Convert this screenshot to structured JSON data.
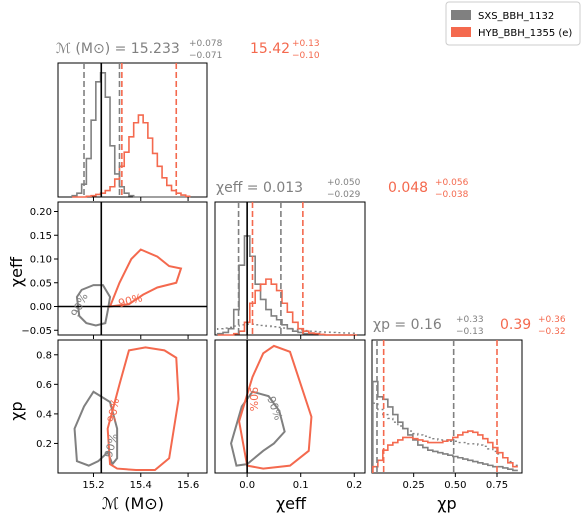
{
  "colors": {
    "series1": "#808080",
    "series2": "#f4694e",
    "truth": "#000000"
  },
  "legend": {
    "placement": "top-right",
    "items": [
      {
        "label": "SXS_BBH_1132",
        "color": "#808080"
      },
      {
        "label": "HYB_BBH_1355 (e)",
        "color": "#f4694e"
      }
    ]
  },
  "titles": {
    "mass": {
      "lead": "ℳ (M⊙) = 15.233",
      "up1": "+0.078",
      "lo1": "−0.071",
      "val2": "15.42",
      "up2": "+0.13",
      "lo2": "−0.10"
    },
    "chieff": {
      "lead": "χeff = 0.013",
      "up1": "+0.050",
      "lo1": "−0.029",
      "val2": "0.048",
      "up2": "+0.056",
      "lo2": "−0.038"
    },
    "chip": {
      "lead": "χp = 0.16",
      "up1": "+0.33",
      "lo1": "−0.13",
      "val2": "0.39",
      "up2": "+0.36",
      "lo2": "−0.32"
    }
  },
  "axis_labels": {
    "mass": "ℳ (M⊙)",
    "chieff": "χeff",
    "chip": "χp"
  },
  "contour_labels": {
    "level": "90%"
  },
  "chart_data": {
    "type": "corner",
    "parameters": [
      "mass",
      "chi_eff",
      "chi_p"
    ],
    "ranges": {
      "mass": [
        15.05,
        15.68
      ],
      "chi_eff": [
        -0.06,
        0.22
      ],
      "chi_p": [
        0.0,
        0.9
      ]
    },
    "ticks": {
      "mass": [
        "15.2",
        "15.4",
        "15.6"
      ],
      "chi_eff_x": [
        "0.0",
        "0.1",
        "0.2"
      ],
      "chi_eff_y": [
        "−0.05",
        "0.00",
        "0.05",
        "0.10",
        "0.15",
        "0.20"
      ],
      "chi_p_x": [
        "0.25",
        "0.50",
        "0.75"
      ],
      "chi_p_y": [
        "0.2",
        "0.4",
        "0.6",
        "0.8"
      ]
    },
    "truth": {
      "mass": 15.233,
      "chi_eff": 0.0
    },
    "credible_intervals": {
      "mass": {
        "s1": [
          15.16,
          15.31
        ],
        "s2": [
          15.32,
          15.55
        ]
      },
      "chi_eff": {
        "s1": [
          -0.016,
          0.063
        ],
        "s2": [
          0.01,
          0.104
        ]
      },
      "chi_p": {
        "s1": [
          0.03,
          0.49
        ],
        "s2": [
          0.07,
          0.75
        ]
      }
    },
    "hist_mass": {
      "x": [
        15.12,
        15.14,
        15.16,
        15.18,
        15.2,
        15.22,
        15.24,
        15.26,
        15.28,
        15.3,
        15.32,
        15.34,
        15.36,
        15.38,
        15.4,
        15.42,
        15.44,
        15.46,
        15.48,
        15.5,
        15.52,
        15.54,
        15.56,
        15.58,
        15.6
      ],
      "s1": [
        0.01,
        0.03,
        0.1,
        0.3,
        0.6,
        0.9,
        0.97,
        0.78,
        0.4,
        0.18,
        0.08,
        0.03,
        0.01,
        0.0,
        0,
        0,
        0,
        0,
        0,
        0,
        0,
        0,
        0,
        0,
        0
      ],
      "s2": [
        0,
        0,
        0,
        0.005,
        0.01,
        0.02,
        0.03,
        0.05,
        0.08,
        0.14,
        0.24,
        0.35,
        0.47,
        0.58,
        0.64,
        0.58,
        0.46,
        0.34,
        0.24,
        0.15,
        0.09,
        0.05,
        0.03,
        0.015,
        0.005
      ]
    },
    "hist_chieff": {
      "x": [
        -0.05,
        -0.04,
        -0.03,
        -0.02,
        -0.01,
        0.0,
        0.01,
        0.02,
        0.03,
        0.04,
        0.05,
        0.06,
        0.07,
        0.08,
        0.09,
        0.1,
        0.11,
        0.12,
        0.13,
        0.14,
        0.15,
        0.16,
        0.17,
        0.18,
        0.19,
        0.2
      ],
      "s1": [
        0.01,
        0.02,
        0.05,
        0.2,
        0.55,
        0.78,
        0.62,
        0.4,
        0.28,
        0.2,
        0.15,
        0.12,
        0.08,
        0.05,
        0.03,
        0.02,
        0.01,
        0.01,
        0.01,
        0,
        0,
        0,
        0,
        0,
        0,
        0
      ],
      "s2": [
        0,
        0,
        0,
        0.01,
        0.03,
        0.1,
        0.25,
        0.35,
        0.4,
        0.44,
        0.4,
        0.35,
        0.25,
        0.18,
        0.1,
        0.05,
        0.03,
        0.015,
        0.01,
        0.005,
        0,
        0,
        0,
        0,
        0,
        0
      ],
      "prior": [
        0.05,
        0.055,
        0.06,
        0.07,
        0.08,
        0.085,
        0.085,
        0.08,
        0.075,
        0.07,
        0.065,
        0.06,
        0.055,
        0.05,
        0.045,
        0.04,
        0.035,
        0.03,
        0.028,
        0.025,
        0.022,
        0.02,
        0.018,
        0.016,
        0.015,
        0.014
      ]
    },
    "hist_chip": {
      "x": [
        0.02,
        0.05,
        0.08,
        0.11,
        0.14,
        0.17,
        0.2,
        0.23,
        0.26,
        0.29,
        0.32,
        0.35,
        0.38,
        0.41,
        0.44,
        0.47,
        0.5,
        0.53,
        0.56,
        0.59,
        0.62,
        0.65,
        0.68,
        0.71,
        0.74,
        0.77,
        0.8,
        0.83,
        0.86
      ],
      "s1": [
        0.72,
        0.6,
        0.58,
        0.52,
        0.46,
        0.4,
        0.35,
        0.3,
        0.26,
        0.22,
        0.2,
        0.18,
        0.17,
        0.16,
        0.15,
        0.14,
        0.13,
        0.12,
        0.11,
        0.1,
        0.09,
        0.08,
        0.07,
        0.06,
        0.05,
        0.05,
        0.04,
        0.03,
        0.02
      ],
      "s2": [
        0.05,
        0.1,
        0.18,
        0.22,
        0.24,
        0.26,
        0.28,
        0.28,
        0.27,
        0.26,
        0.25,
        0.24,
        0.24,
        0.24,
        0.25,
        0.26,
        0.28,
        0.3,
        0.32,
        0.33,
        0.32,
        0.3,
        0.27,
        0.24,
        0.2,
        0.16,
        0.12,
        0.08,
        0.05
      ],
      "prior": [
        0.55,
        0.5,
        0.46,
        0.43,
        0.4,
        0.37,
        0.35,
        0.33,
        0.31,
        0.3,
        0.29,
        0.28,
        0.27,
        0.26,
        0.26,
        0.25,
        0.25,
        0.24,
        0.24,
        0.23,
        0.23,
        0.22,
        0.21,
        0.19,
        0.17,
        0.15,
        0.12,
        0.09,
        0.06
      ]
    },
    "contours_90": {
      "mass_chieff": {
        "s1": [
          [
            15.17,
            -0.035
          ],
          [
            15.14,
            -0.02
          ],
          [
            15.13,
            0.02
          ],
          [
            15.15,
            0.035
          ],
          [
            15.2,
            0.045
          ],
          [
            15.24,
            0.045
          ],
          [
            15.27,
            0.02
          ],
          [
            15.26,
            -0.01
          ],
          [
            15.25,
            -0.035
          ],
          [
            15.21,
            -0.04
          ]
        ],
        "s2": [
          [
            15.27,
            0.0
          ],
          [
            15.31,
            0.05
          ],
          [
            15.36,
            0.1
          ],
          [
            15.4,
            0.12
          ],
          [
            15.47,
            0.105
          ],
          [
            15.52,
            0.085
          ],
          [
            15.57,
            0.08
          ],
          [
            15.55,
            0.05
          ],
          [
            15.47,
            0.04
          ],
          [
            15.41,
            0.025
          ],
          [
            15.35,
            0.005
          ]
        ]
      },
      "mass_chip": {
        "s1": [
          [
            15.13,
            0.08
          ],
          [
            15.12,
            0.3
          ],
          [
            15.16,
            0.45
          ],
          [
            15.2,
            0.55
          ],
          [
            15.27,
            0.48
          ],
          [
            15.3,
            0.3
          ],
          [
            15.3,
            0.1
          ],
          [
            15.28,
            0.06
          ],
          [
            15.26,
            0.14
          ],
          [
            15.22,
            0.08
          ],
          [
            15.18,
            0.05
          ]
        ],
        "s2": [
          [
            15.27,
            0.06
          ],
          [
            15.26,
            0.3
          ],
          [
            15.31,
            0.6
          ],
          [
            15.35,
            0.83
          ],
          [
            15.42,
            0.85
          ],
          [
            15.5,
            0.83
          ],
          [
            15.55,
            0.78
          ],
          [
            15.56,
            0.5
          ],
          [
            15.52,
            0.1
          ],
          [
            15.46,
            0.02
          ],
          [
            15.38,
            0.02
          ],
          [
            15.3,
            0.03
          ]
        ]
      },
      "chieff_chip": {
        "s1": [
          [
            -0.02,
            0.05
          ],
          [
            -0.03,
            0.2
          ],
          [
            -0.01,
            0.45
          ],
          [
            0.01,
            0.55
          ],
          [
            0.04,
            0.52
          ],
          [
            0.06,
            0.42
          ],
          [
            0.07,
            0.28
          ],
          [
            0.05,
            0.2
          ],
          [
            0.03,
            0.15
          ],
          [
            0.0,
            0.06
          ]
        ],
        "s2": [
          [
            0.0,
            0.05
          ],
          [
            -0.015,
            0.35
          ],
          [
            0.01,
            0.65
          ],
          [
            0.03,
            0.81
          ],
          [
            0.05,
            0.86
          ],
          [
            0.08,
            0.82
          ],
          [
            0.1,
            0.6
          ],
          [
            0.12,
            0.38
          ],
          [
            0.115,
            0.15
          ],
          [
            0.08,
            0.05
          ],
          [
            0.03,
            0.03
          ]
        ]
      }
    }
  }
}
